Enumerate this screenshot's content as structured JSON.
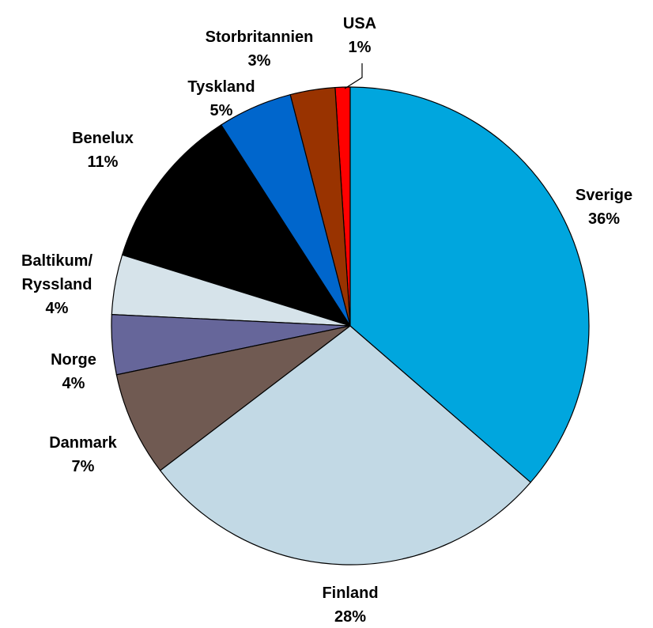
{
  "chart_data": {
    "type": "pie",
    "categories": [
      "Sverige",
      "Finland",
      "Danmark",
      "Norge",
      "Baltikum/\nRyssland",
      "Benelux",
      "Tyskland",
      "Storbritannien",
      "USA"
    ],
    "values": [
      36,
      28,
      7,
      4,
      4,
      11,
      5,
      3,
      1
    ],
    "value_labels": [
      "36%",
      "28%",
      "7%",
      "4%",
      "4%",
      "11%",
      "5%",
      "3%",
      "1%"
    ],
    "colors": [
      "#00a6de",
      "#c2d9e5",
      "#705a52",
      "#66669a",
      "#d6e3ea",
      "#000000",
      "#0066cc",
      "#993300",
      "#ff0000"
    ]
  }
}
